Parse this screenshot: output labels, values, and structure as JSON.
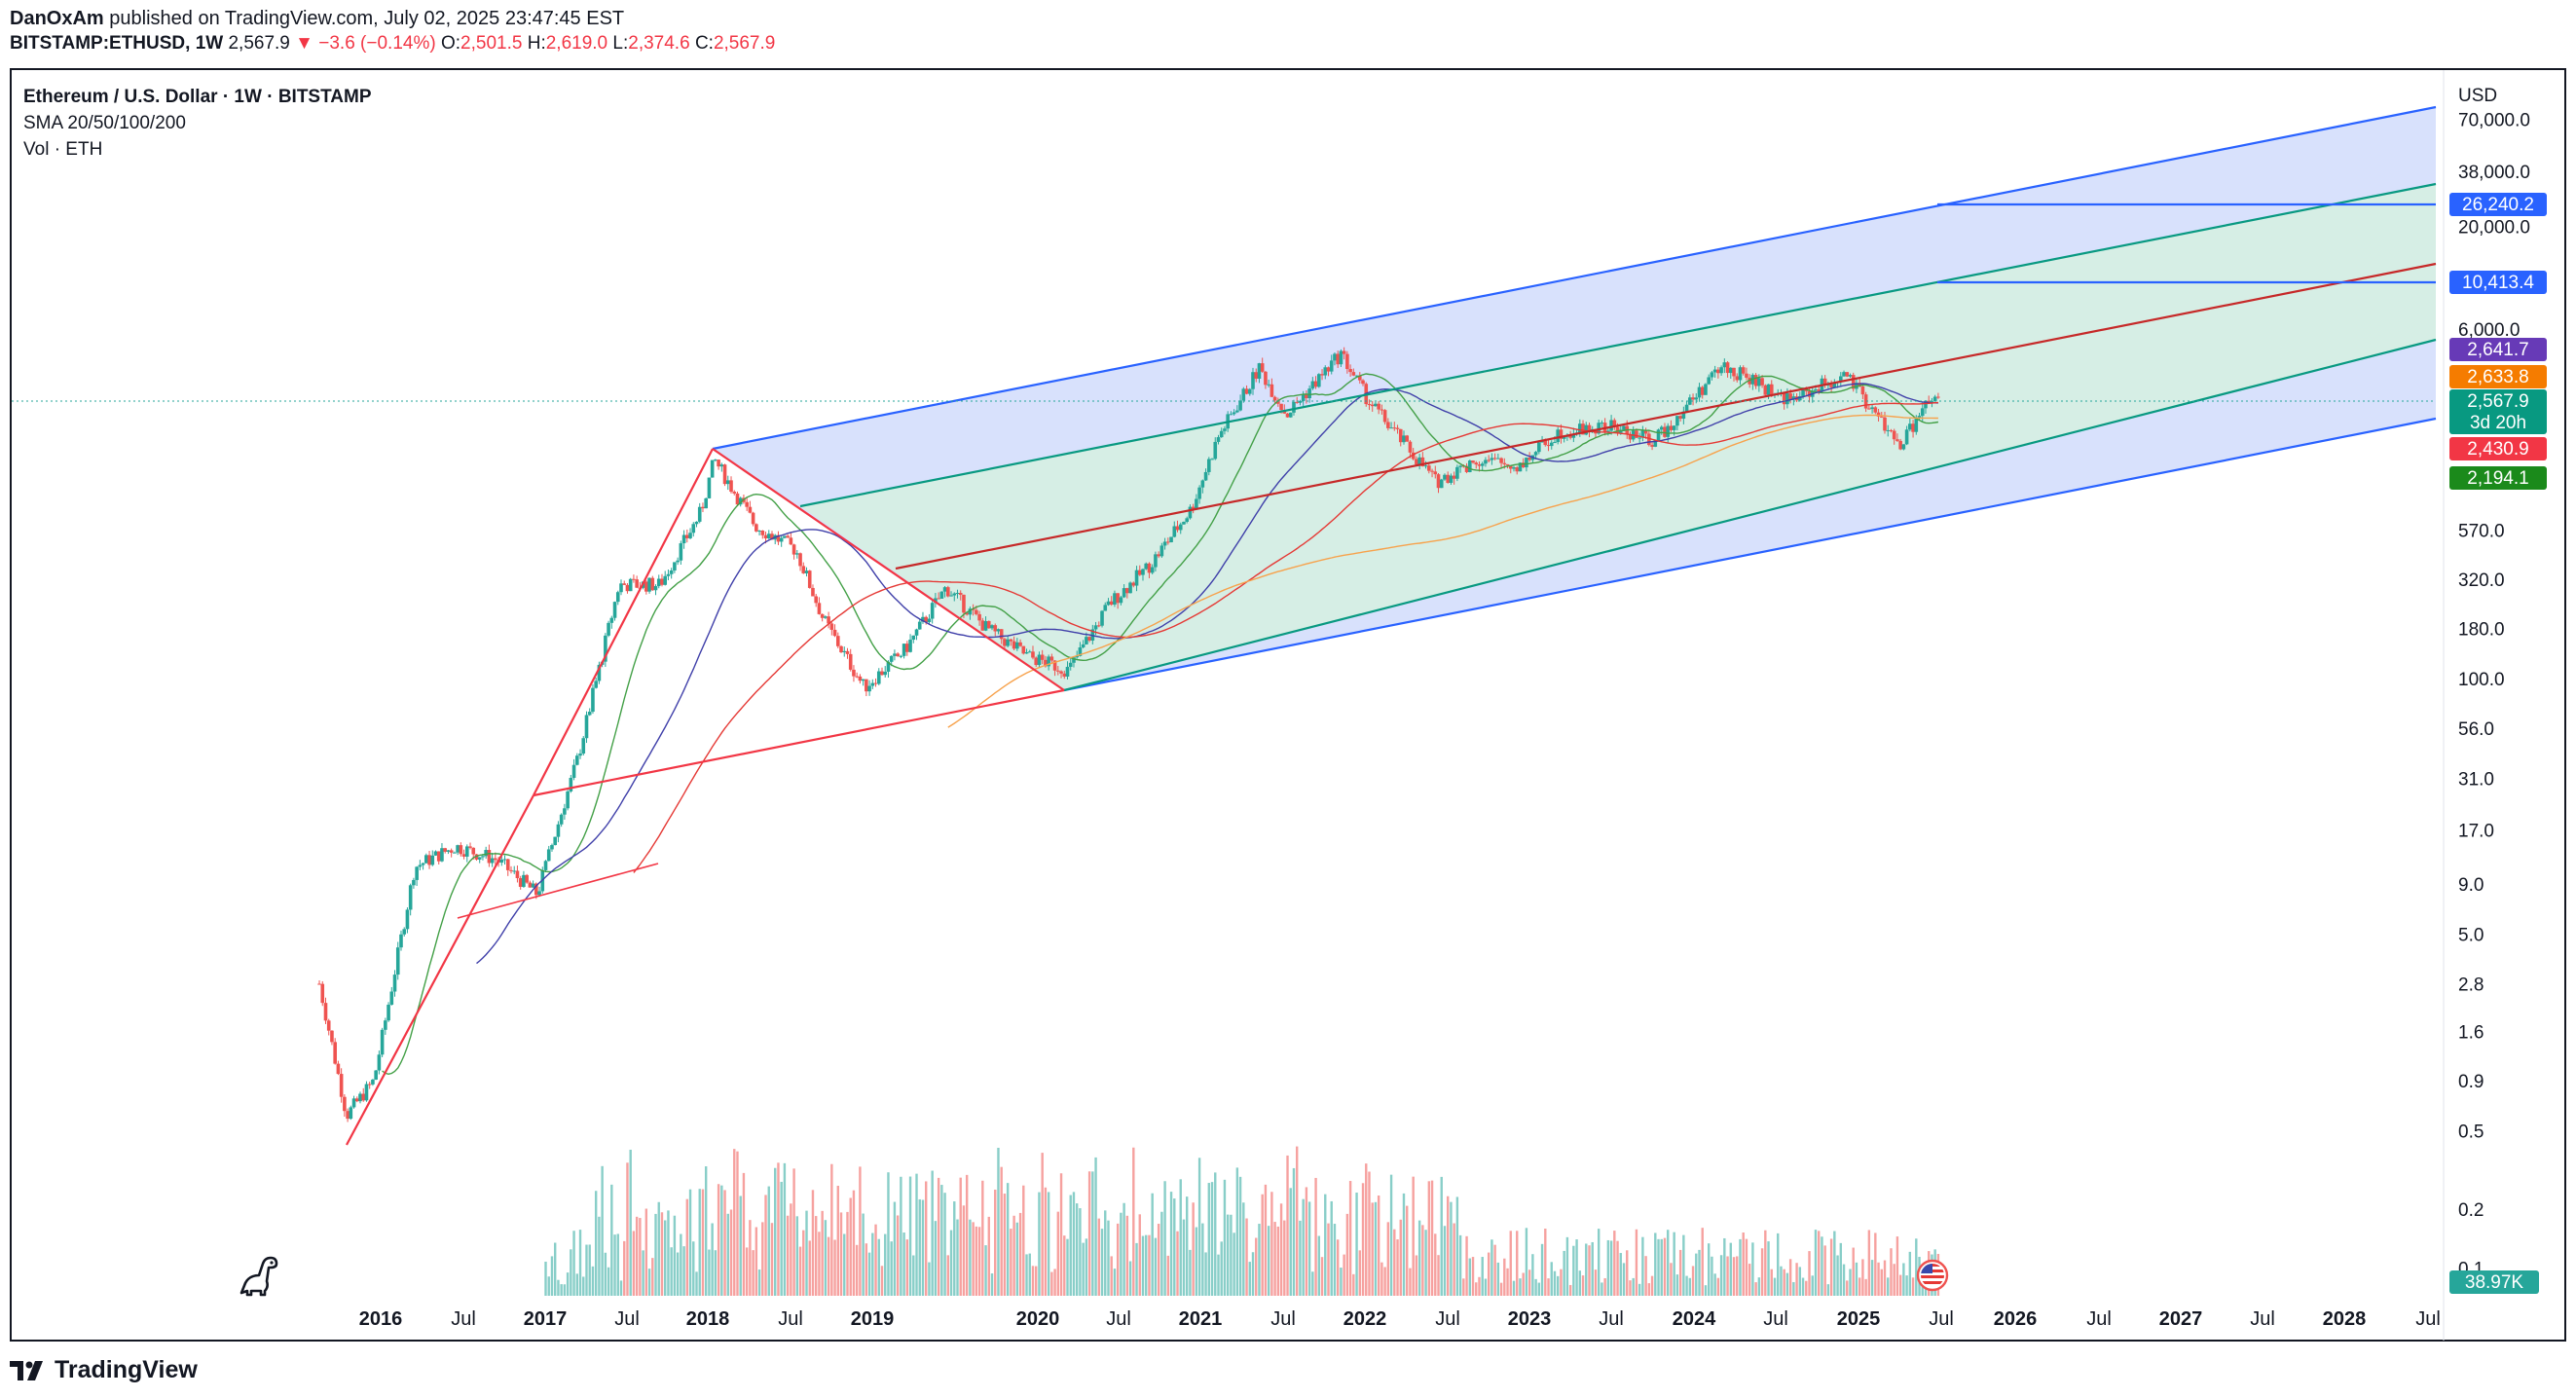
{
  "header": {
    "author": "DanOxAm",
    "published": "published on TradingView.com, July 02, 2025 23:47:45 EST",
    "symbol": "BITSTAMP:ETHUSD, 1W",
    "last": "2,567.9",
    "change_arrow": "▼",
    "change": "−3.6 (−0.14%)",
    "open_label": "O:",
    "open": "2,501.5",
    "high_label": "H:",
    "high": "2,619.0",
    "low_label": "L:",
    "low": "2,374.6",
    "close_label": "C:",
    "close": "2,567.9"
  },
  "legend": {
    "title": "Ethereum / U.S. Dollar · 1W · BITSTAMP",
    "sma": "SMA 20/50/100/200",
    "vol": "Vol · ETH"
  },
  "footer": {
    "brand": "TradingView",
    "logo_icon": "tradingview-logo-icon"
  },
  "colors": {
    "up": "#26a69a",
    "down": "#ef5350",
    "channel_outer": "#2962ff",
    "channel_inner": "#089981",
    "channel_mid": "#c62828",
    "fill_outer": "#d1dcfb",
    "fill_inner": "#d6eee4",
    "sma20": "#43a047",
    "sma50": "#3f3fa9",
    "sma100": "#e53935",
    "sma200": "#f7a24c",
    "fork_lines": "#f23645"
  },
  "chart_data": {
    "type": "candlestick",
    "scale": "log",
    "x_labels": [
      "2016",
      "Jul",
      "2017",
      "Jul",
      "2018",
      "Jul",
      "2019",
      "2020",
      "Jul",
      "2021",
      "Jul",
      "2022",
      "Jul",
      "2023",
      "Jul",
      "2024",
      "Jul",
      "2025",
      "Jul",
      "2026",
      "Jul",
      "2027",
      "Jul",
      "2028",
      "Jul"
    ],
    "y_labels": [
      "70,000.0",
      "38,000.0",
      "20,000.0",
      "6,000.0",
      "570.0",
      "320.0",
      "180.0",
      "100.0",
      "56.0",
      "31.0",
      "17.0",
      "9.0",
      "5.0",
      "2.8",
      "1.6",
      "0.9",
      "0.5",
      "0.2",
      "0.1"
    ],
    "currency": "USD",
    "price_tags": [
      {
        "value": "26,240.2",
        "color": "#2962ff"
      },
      {
        "value": "10,413.4",
        "color": "#2962ff"
      },
      {
        "value": "2,641.7",
        "color": "#673ab7"
      },
      {
        "value": "2,633.8",
        "color": "#f57c00"
      },
      {
        "value": "2,567.9",
        "color": "#089981",
        "countdown": "3d 20h"
      },
      {
        "value": "2,430.9",
        "color": "#f23645"
      },
      {
        "value": "2,194.1",
        "color": "#1b8a1b"
      }
    ],
    "volume_tag": "38.97K",
    "price_path": [
      [
        "2015-08",
        2.8
      ],
      [
        "2015-10",
        0.6
      ],
      [
        "2015-12",
        0.9
      ],
      [
        "2016-03",
        11
      ],
      [
        "2016-06",
        14
      ],
      [
        "2016-09",
        12
      ],
      [
        "2016-12",
        8
      ],
      [
        "2017-03",
        40
      ],
      [
        "2017-06",
        300
      ],
      [
        "2017-09",
        300
      ],
      [
        "2017-12",
        700
      ],
      [
        "2018-01",
        1300
      ],
      [
        "2018-04",
        600
      ],
      [
        "2018-07",
        450
      ],
      [
        "2018-09",
        200
      ],
      [
        "2018-12",
        90
      ],
      [
        "2019-03",
        140
      ],
      [
        "2019-06",
        290
      ],
      [
        "2019-09",
        180
      ],
      [
        "2019-12",
        130
      ],
      [
        "2020-03",
        110
      ],
      [
        "2020-06",
        240
      ],
      [
        "2020-09",
        380
      ],
      [
        "2020-12",
        730
      ],
      [
        "2021-02",
        1700
      ],
      [
        "2021-05",
        3800
      ],
      [
        "2021-07",
        2200
      ],
      [
        "2021-11",
        4500
      ],
      [
        "2022-01",
        2600
      ],
      [
        "2022-06",
        1000
      ],
      [
        "2022-09",
        1300
      ],
      [
        "2022-12",
        1200
      ],
      [
        "2023-03",
        1800
      ],
      [
        "2023-07",
        1900
      ],
      [
        "2023-10",
        1600
      ],
      [
        "2024-03",
        3900
      ],
      [
        "2024-08",
        2600
      ],
      [
        "2024-12",
        3500
      ],
      [
        "2025-03",
        1900
      ],
      [
        "2025-04",
        1500
      ],
      [
        "2025-06",
        2500
      ],
      [
        "2025-07",
        2567.9
      ]
    ],
    "annotation_lines": [
      "parallel channel (outer)",
      "parallel channel (inner)",
      "median line",
      "pitchfork handle"
    ]
  }
}
